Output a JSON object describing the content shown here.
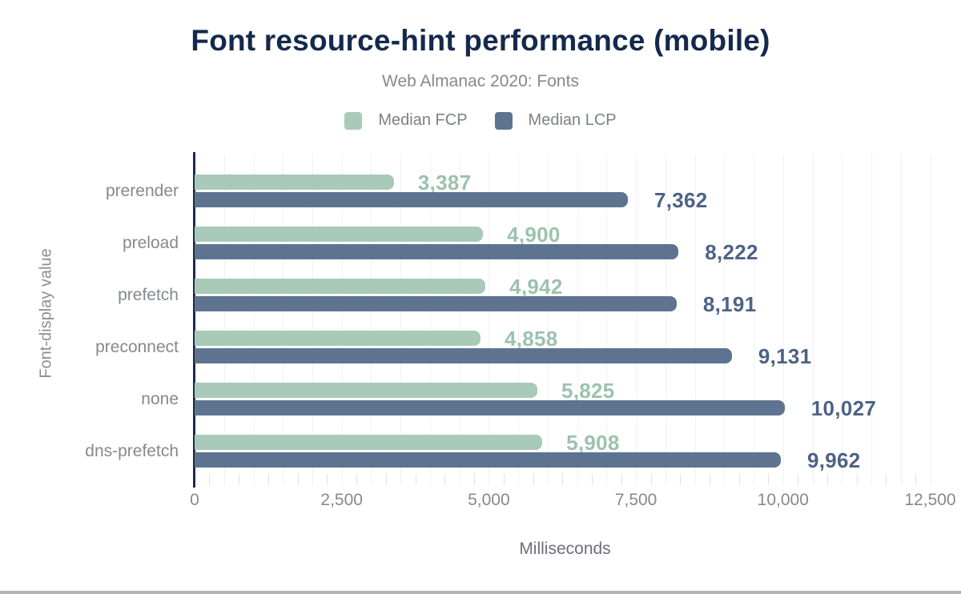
{
  "page": {
    "background_color": "#ffffff",
    "bottom_strip_color": "#b2b4b6"
  },
  "colors": {
    "title": "#15294b",
    "muted_text": "#85898f",
    "legend_text": "#7c8187",
    "axis_line": "#1b2b4d",
    "gridline": "#f1f1f4",
    "minor_tick": "#e2e2e6",
    "fcp_bar": "#a9cab8",
    "fcp_label": "#9cc2ae",
    "lcp_bar": "#5e7390",
    "lcp_label": "#4d6285"
  },
  "chart_data": {
    "type": "bar",
    "orientation": "horizontal",
    "title": "Font resource-hint performance (mobile)",
    "subtitle": "Web Almanac 2020: Fonts",
    "xlabel": "Milliseconds",
    "ylabel": "Font-display value",
    "categories": [
      "prerender",
      "preload",
      "prefetch",
      "preconnect",
      "none",
      "dns-prefetch"
    ],
    "series": [
      {
        "name": "Median FCP",
        "color": "#a9cab8",
        "label_color": "#9cc2ae",
        "values": [
          3387,
          4900,
          4942,
          4858,
          5825,
          5908
        ]
      },
      {
        "name": "Median LCP",
        "color": "#5e7390",
        "label_color": "#4d6285",
        "values": [
          7362,
          8222,
          8191,
          9131,
          10027,
          9962
        ]
      }
    ],
    "xlim": [
      0,
      12500
    ],
    "x_ticks": [
      0,
      2500,
      5000,
      7500,
      10000,
      12500
    ],
    "x_tick_labels": [
      "0",
      "2,500",
      "5,000",
      "7,500",
      "10,000",
      "12,500"
    ],
    "gridline_step_ms": 500,
    "minor_tick_step_ms": 250,
    "grid": true,
    "legend_position": "top",
    "value_labels_shown": true
  }
}
